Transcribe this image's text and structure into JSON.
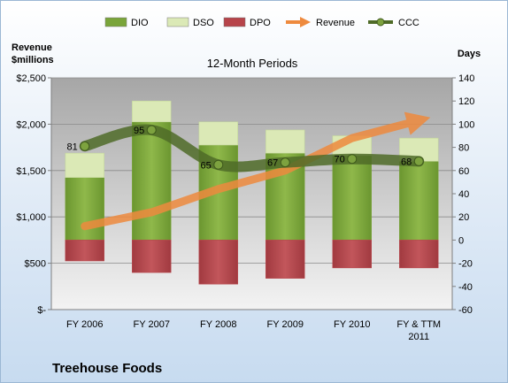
{
  "colors": {
    "dio": "#7aa53a",
    "dso": "#dbe9b6",
    "dpo": "#b7444a",
    "revenue": "#ee8a3e",
    "ccc": "#4f6b28",
    "plot_top": "#a6a6a6",
    "plot_bottom": "#f3f3f3"
  },
  "company_name": "Treehouse Foods",
  "chart_data": {
    "type": "bar",
    "title": "12-Month Periods",
    "left_axis": {
      "label_line1": "Revenue",
      "label_line2": "$millions",
      "min": 0,
      "max": 2500,
      "step": 500,
      "tick_labels": [
        "$-",
        "$500",
        "$1,000",
        "$1,500",
        "$2,000",
        "$2,500"
      ]
    },
    "right_axis": {
      "label": "Days",
      "min": -60,
      "max": 140,
      "step": 20,
      "tick_labels": [
        "-60",
        "-40",
        "-20",
        "0",
        "20",
        "40",
        "60",
        "80",
        "100",
        "120",
        "140"
      ]
    },
    "categories": [
      [
        "FY 2006"
      ],
      [
        "FY 2007"
      ],
      [
        "FY 2008"
      ],
      [
        "FY 2009"
      ],
      [
        "FY 2010"
      ],
      [
        "FY & TTM",
        "2011"
      ]
    ],
    "legend": [
      "DIO",
      "DSO",
      "DPO",
      "Revenue",
      "CCC"
    ],
    "legend_position": "top",
    "grid": true,
    "series": [
      {
        "name": "DIO",
        "axis": "days",
        "stacked": true,
        "values": [
          54,
          102,
          82,
          75,
          73,
          68
        ]
      },
      {
        "name": "DSO",
        "axis": "days",
        "stacked": true,
        "values": [
          21,
          18,
          20,
          20,
          17,
          20
        ]
      },
      {
        "name": "DPO",
        "axis": "days",
        "stacked": true,
        "values": [
          -18,
          -28,
          -38,
          -33,
          -24,
          -24
        ]
      },
      {
        "name": "Revenue",
        "axis": "revenue",
        "type": "arrow",
        "values": [
          900,
          1050,
          1300,
          1500,
          1850,
          2040
        ]
      },
      {
        "name": "CCC",
        "axis": "days",
        "type": "line",
        "values": [
          81,
          95,
          65,
          67,
          70,
          68
        ],
        "data_labels": [
          "81",
          "95",
          "65",
          "67",
          "70",
          "68"
        ]
      }
    ]
  }
}
